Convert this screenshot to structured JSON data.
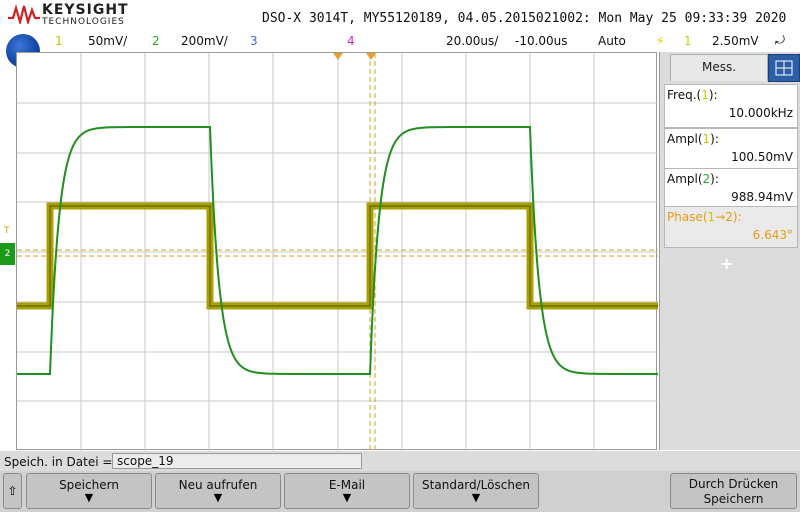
{
  "header": {
    "brand": "KEYSIGHT",
    "brand_sub": "TECHNOLOGIES",
    "info": "DSO-X 3014T, MY55120189, 04.05.2015021002: Mon May 25 09:33:39 2020"
  },
  "channel_bar": {
    "ch1_num": "1",
    "ch1_scale": "50mV/",
    "ch2_num": "2",
    "ch2_scale": "200mV/",
    "ch3_num": "3",
    "ch4_num": "4",
    "timebase": "20.00us/",
    "delay": "-10.00us",
    "mode": "Auto",
    "trigger_ch": "1",
    "trigger_level": "2.50mV",
    "colors": {
      "ch1": "#c8c800",
      "ch2": "#22aa22",
      "ch3": "#4466dd",
      "ch4": "#cc22cc",
      "trigger": "#e8c800"
    }
  },
  "markers": {
    "ch2": "2"
  },
  "panel": {
    "tab_label": "Mess.",
    "measurements": [
      {
        "label_pre": "Freq.(",
        "ch": "1",
        "label_post": "):",
        "value": "10.000kHz"
      },
      {
        "label_pre": "Ampl(",
        "ch": "1",
        "label_post": "):",
        "value": "100.50mV"
      },
      {
        "label_pre": "Ampl(",
        "ch": "2",
        "label_post": "):",
        "value": "988.94mV"
      },
      {
        "label_pre": "Phase(",
        "ch": "1",
        "label_post": "→2):",
        "value": "6.643°"
      }
    ],
    "add": "+"
  },
  "bottom": {
    "save_label": "Speich. in Datei =",
    "filename": "scope_19",
    "softkeys": [
      "Speichern",
      "Neu aufrufen",
      "E-Mail",
      "Standard/Löschen"
    ],
    "print_line1": "Durch Drücken",
    "print_line2": "Speichern",
    "up_arrow": "⇧"
  }
}
